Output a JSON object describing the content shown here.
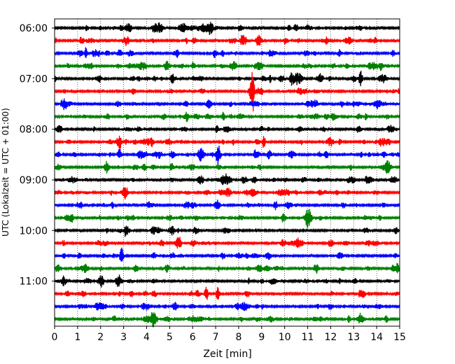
{
  "chart_data": {
    "type": "line",
    "title": "",
    "xlabel": "Zeit  [min]",
    "ylabel": "UTC (Lokalzeit = UTC + 01:00)",
    "xlim": [
      0,
      15
    ],
    "x_ticks": [
      "0",
      "1",
      "2",
      "3",
      "4",
      "5",
      "6",
      "7",
      "8",
      "9",
      "10",
      "11",
      "12",
      "13",
      "14",
      "15"
    ],
    "y_ticks": [
      "06:00",
      "07:00",
      "08:00",
      "09:00",
      "10:00",
      "11:00"
    ],
    "trace_interval_min": 15,
    "trace_count": 24,
    "first_trace_time": "06:00",
    "grid": "vertical dotted",
    "colors": [
      "#000000",
      "#ff0000",
      "#0000ff",
      "#008000"
    ],
    "color_cycle": [
      "black",
      "red",
      "blue",
      "green"
    ],
    "events": [
      {
        "trace": 0,
        "minute": 6.8,
        "amp": 10
      },
      {
        "trace": 4,
        "minute": 10.3,
        "amp": 9
      },
      {
        "trace": 4,
        "minute": 13.3,
        "amp": 11
      },
      {
        "trace": 5,
        "minute": 8.6,
        "amp": 26
      },
      {
        "trace": 10,
        "minute": 7.1,
        "amp": 12
      },
      {
        "trace": 10,
        "minute": 11.8,
        "amp": 8
      },
      {
        "trace": 14,
        "minute": 9.6,
        "amp": 7
      },
      {
        "trace": 16,
        "minute": 3.1,
        "amp": 8
      },
      {
        "trace": 18,
        "minute": 2.9,
        "amp": 8
      },
      {
        "trace": 19,
        "minute": 14.9,
        "amp": 7
      },
      {
        "trace": 21,
        "minute": 6.6,
        "amp": 10
      },
      {
        "trace": 21,
        "minute": 7.1,
        "amp": 10
      },
      {
        "trace": 23,
        "minute": 12.8,
        "amp": 5
      }
    ]
  }
}
